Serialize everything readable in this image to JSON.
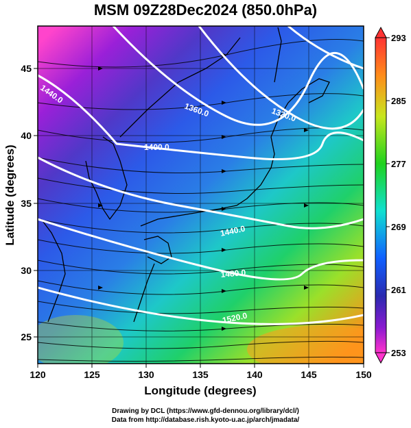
{
  "title": "MSM 09Z28Dec2024 (850.0hPa)",
  "x_axis": {
    "label": "Longitude (degrees)",
    "ticks": [
      "120",
      "125",
      "130",
      "135",
      "140",
      "145",
      "150"
    ],
    "range": [
      120,
      150
    ]
  },
  "y_axis": {
    "label": "Latitude  (degrees)",
    "ticks": [
      "25",
      "30",
      "35",
      "40",
      "45"
    ],
    "range": [
      22.5,
      47.5
    ]
  },
  "colorbar": {
    "ticks": [
      "293",
      "285",
      "277",
      "269",
      "261",
      "253"
    ],
    "range": [
      253,
      293
    ],
    "colors": [
      "#ff3333",
      "#ff8c1a",
      "#c8e61e",
      "#1ed21e",
      "#10e0d0",
      "#1060ff",
      "#2a2ab0",
      "#8a1ad0",
      "#ff33cc"
    ]
  },
  "contours": [
    {
      "label": "1320.0"
    },
    {
      "label": "1360.0"
    },
    {
      "label": "1400.0"
    },
    {
      "label": "1440.0"
    },
    {
      "label": "1440.0"
    },
    {
      "label": "1480.0"
    },
    {
      "label": "1520.0"
    }
  ],
  "footer": {
    "line1": "Drawing by DCL (https://www.gfd-dennou.org/library/dcl/)",
    "line2": "Data from http://database.rish.kyoto-u.ac.jp/arch/jmadata/"
  }
}
